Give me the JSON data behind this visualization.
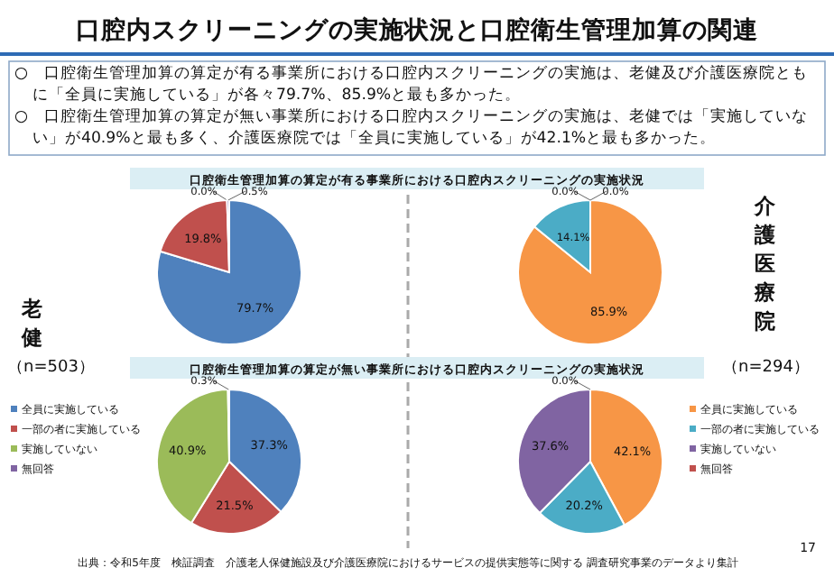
{
  "chart_data": [
    {
      "type": "other",
      "title": "口腔内スクリーニングの実施状況と口腔衛生管理加算の関連",
      "annotations": [
        "○　口腔衛生管理加算の算定が有る事業所における口腔内スクリーニングの実施は、老健及び介護医療院ともに「全員に実施している」が各々79.7%、85.9%と最も多かった。",
        "○　口腔衛生管理加算の算定が無い事業所における口腔内スクリーニングの実施は、老健では「実施していない」が40.9%と最も多く、介護医療院では「全員に実施している」が42.1%と最も多かった。",
        "出典：令和5年度　検証調査　介護老人保健施設及び介護医療院におけるサービスの提供実態等に関する 調査研究事業のデータより集計",
        "17"
      ]
    },
    {
      "type": "pie",
      "title": "口腔衛生管理加算の算定が有る事業所における口腔内スクリーニングの実施状況",
      "categories": [
        null,
        null,
        null,
        null
      ],
      "values": [
        79.7,
        19.8,
        0.0,
        0.5
      ],
      "value_labels": [
        "79.7%",
        "19.8%",
        "0.0%",
        "0.5%"
      ],
      "colors": [
        "#4f81bd",
        "#c0504d",
        "#9bbb59",
        "#8064a2"
      ],
      "annotations": [
        "老健",
        "（n=503）"
      ]
    },
    {
      "type": "pie",
      "categories": [
        null,
        null,
        null,
        null
      ],
      "values": [
        85.9,
        14.1,
        0.0,
        0.0
      ],
      "value_labels": [
        "85.9%",
        "14.1%",
        "0.0%",
        "0.0%"
      ],
      "colors": [
        "#f79646",
        "#4bacc6",
        "#8064a2",
        "#c0504d"
      ],
      "annotations": [
        "介護医療院",
        "（n=294）"
      ]
    },
    {
      "type": "pie",
      "title": "口腔衛生管理加算の算定が無い事業所における口腔内スクリーニングの実施状況",
      "categories": [
        "全員に実施している",
        "一部の者に実施している",
        "実施していない",
        "無回答"
      ],
      "values": [
        37.3,
        21.5,
        40.9,
        0.3
      ],
      "value_labels": [
        "37.3%",
        "21.5%",
        "40.9%",
        "0.3%"
      ],
      "colors": [
        "#4f81bd",
        "#c0504d",
        "#9bbb59",
        "#8064a2"
      ],
      "legend": "left"
    },
    {
      "type": "pie",
      "categories": [
        "全員に実施している",
        "一部の者に実施している",
        "実施していない",
        "無回答"
      ],
      "values": [
        42.1,
        20.2,
        37.6,
        0.0
      ],
      "value_labels": [
        "42.1%",
        "20.2%",
        "37.6%",
        "0.0%"
      ],
      "colors": [
        "#f79646",
        "#4bacc6",
        "#8064a2",
        "#c0504d"
      ],
      "legend": "right"
    }
  ]
}
